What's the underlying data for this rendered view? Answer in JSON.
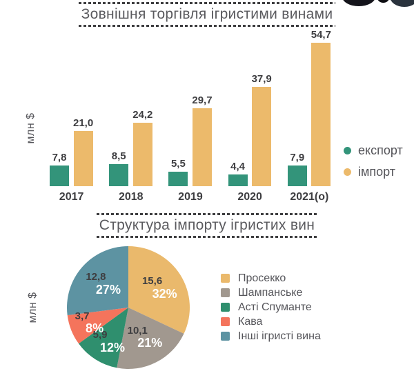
{
  "decor": {
    "name": "photo-fragment",
    "colors": [
      "#14141b",
      "#0d0d12",
      "#2a333d"
    ]
  },
  "chart_data": [
    {
      "type": "bar",
      "title": "Зовнішня торгівля ігристими винами",
      "ylabel": "млн $",
      "categories": [
        "2017",
        "2018",
        "2019",
        "2020",
        "2021(о)"
      ],
      "series": [
        {
          "name": "експорт",
          "color": "#33947A",
          "values": [
            7.8,
            8.5,
            5.5,
            4.4,
            7.9
          ],
          "value_labels": [
            "7,8",
            "8,5",
            "5,5",
            "4,4",
            "7,9"
          ]
        },
        {
          "name": "імпорт",
          "color": "#ECBA6B",
          "values": [
            21.0,
            24.2,
            29.7,
            37.9,
            54.7
          ],
          "value_labels": [
            "21,0",
            "24,2",
            "29,7",
            "37,9",
            "54,7"
          ]
        }
      ],
      "ylim": [
        0,
        60
      ],
      "grid": false,
      "legend_position": "right"
    },
    {
      "type": "pie",
      "title": "Структура імпорту ігристих вин",
      "ylabel": "млн $",
      "slices": [
        {
          "label": "Просекко",
          "value": 15.6,
          "value_label": "15,6",
          "pct": 32,
          "pct_label": "32%",
          "color": "#EAB96C"
        },
        {
          "label": "Шампанське",
          "value": 10.1,
          "value_label": "10,1",
          "pct": 21,
          "pct_label": "21%",
          "color": "#A1988F"
        },
        {
          "label": "Асті Спуманте",
          "value": 5.9,
          "value_label": "5,9",
          "pct": 12,
          "pct_label": "12%",
          "color": "#2F8F6E"
        },
        {
          "label": "Кава",
          "value": 3.7,
          "value_label": "3,7",
          "pct": 8,
          "pct_label": "8%",
          "color": "#F4745C"
        },
        {
          "label": "Інші ігристі вина",
          "value": 12.8,
          "value_label": "12,8",
          "pct": 27,
          "pct_label": "27%",
          "color": "#5D93A2"
        }
      ],
      "start_angle_deg": 0,
      "direction": "clockwise",
      "legend_position": "right"
    }
  ]
}
